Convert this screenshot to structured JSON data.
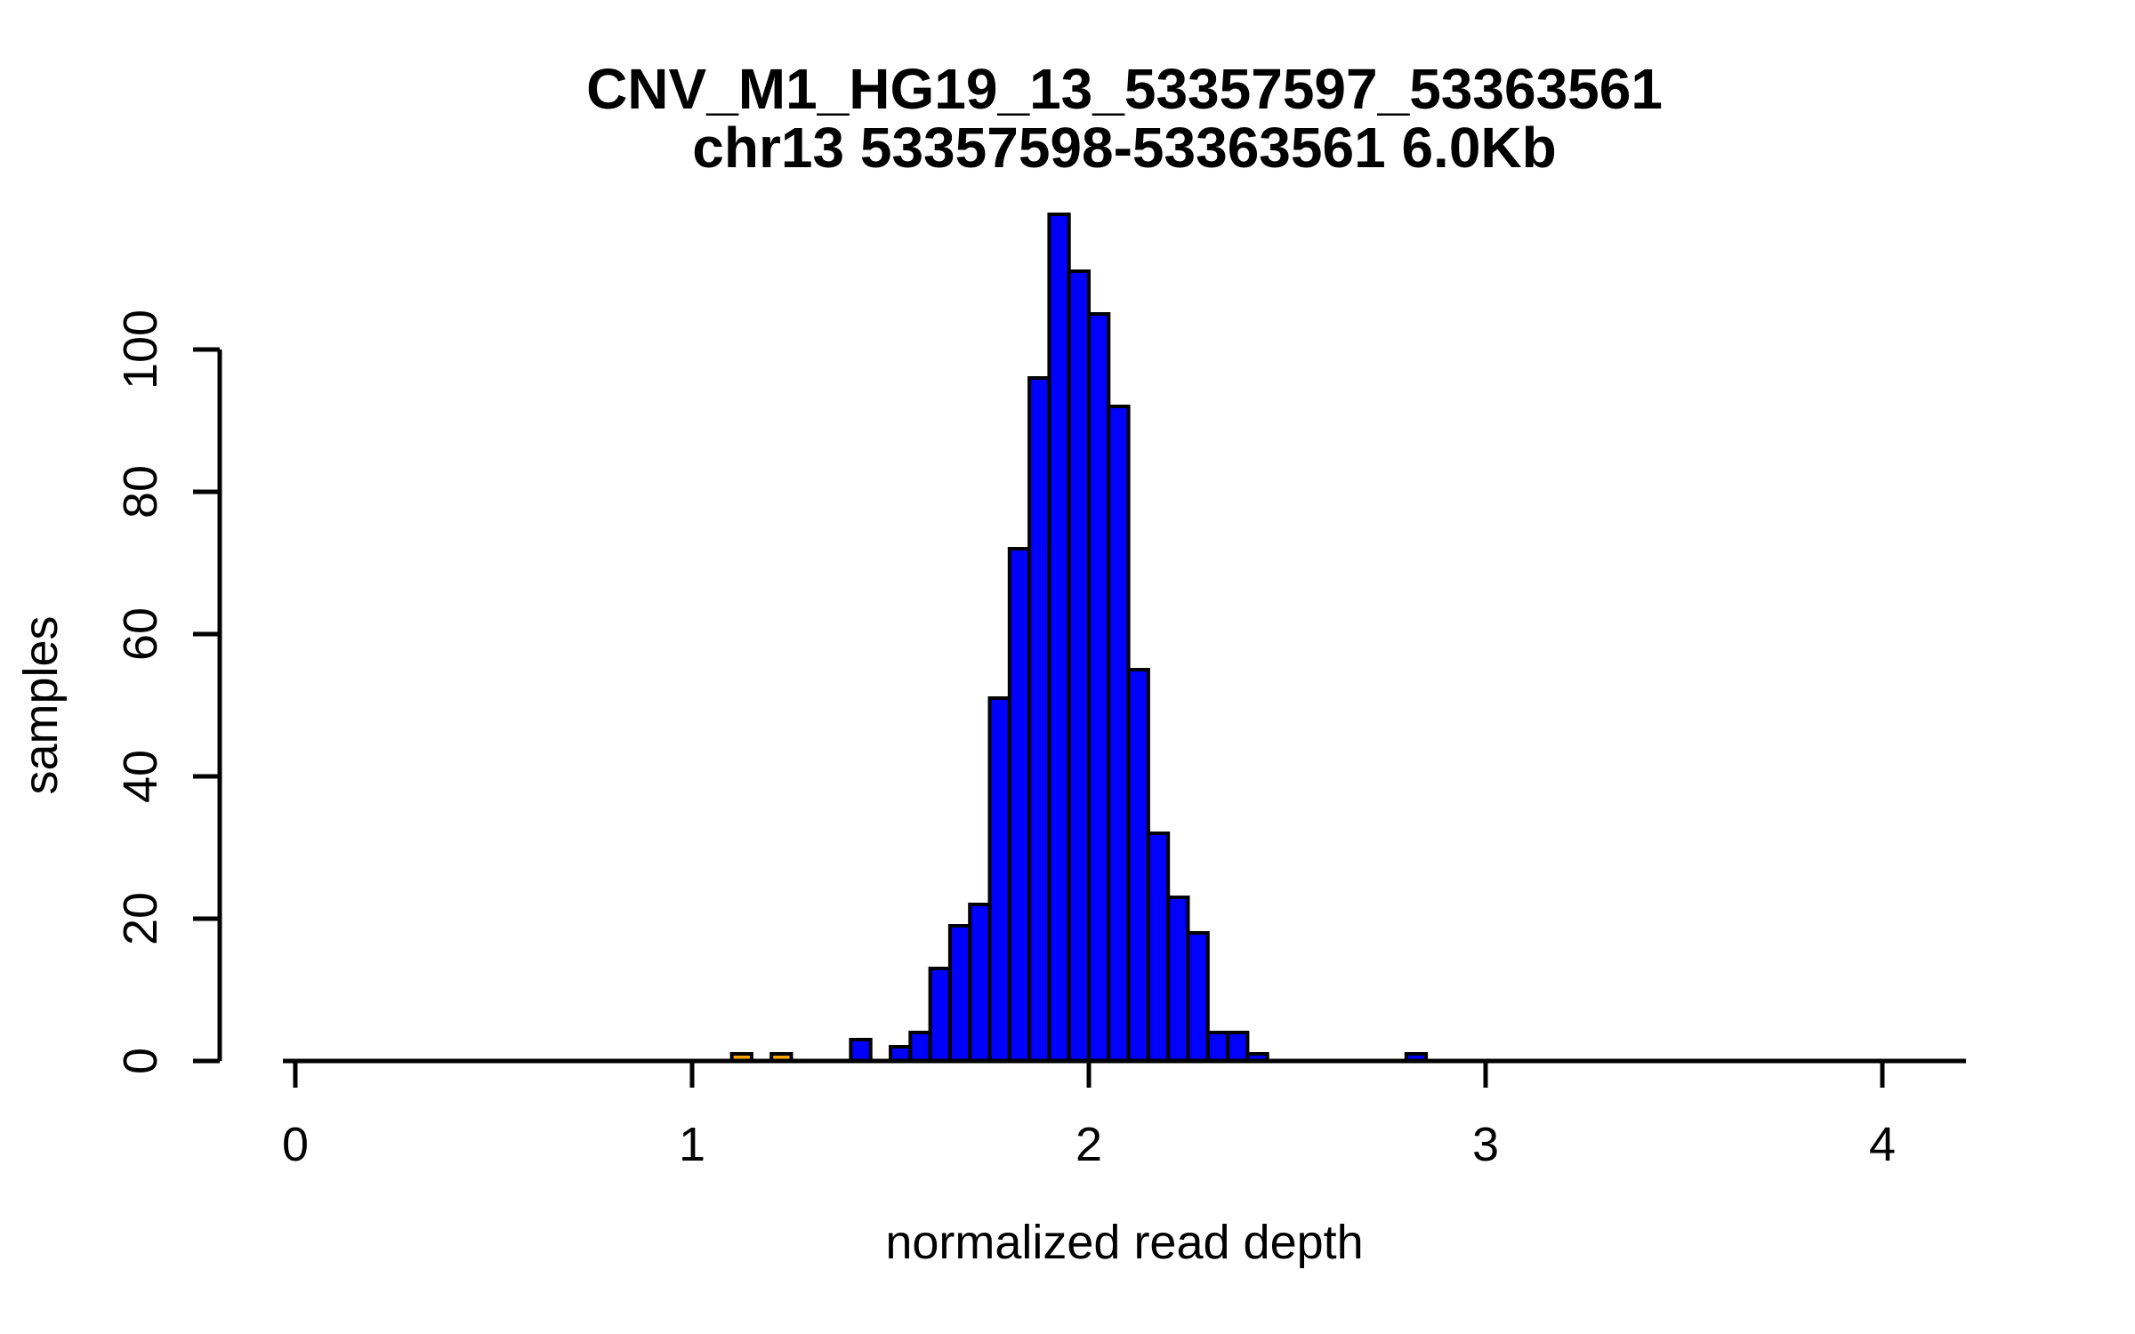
{
  "figure": {
    "title_line1": "CNV_M1_HG19_13_53357597_53363561",
    "title_line2": "chr13 53357598-53363561 6.0Kb"
  },
  "x_axis": {
    "label": "normalized read depth",
    "ticks": [
      0,
      1,
      2,
      3,
      4
    ]
  },
  "y_axis": {
    "label": "samples",
    "ticks": [
      0,
      20,
      40,
      60,
      80,
      100
    ]
  },
  "colors": {
    "bar_main": "#0000FF",
    "bar_outlier": "#FFA500",
    "axis": "#000000",
    "text": "#000000",
    "background": "#FFFFFF"
  },
  "chart_data": {
    "type": "bar",
    "subtype": "histogram",
    "title": "CNV_M1_HG19_13_53357597_53363561\nchr13 53357598-53363561 6.0Kb",
    "xlabel": "normalized read depth",
    "ylabel": "samples",
    "xlim": [
      -0.03,
      4.24
    ],
    "ylim": [
      0,
      119
    ],
    "grid": false,
    "legend": "none",
    "bin_width": 0.05,
    "default_bar_color": "#0000FF",
    "bins": [
      {
        "x0": 1.1,
        "x1": 1.15,
        "count": 1,
        "color": "#FFA500"
      },
      {
        "x0": 1.2,
        "x1": 1.25,
        "count": 1,
        "color": "#FFA500"
      },
      {
        "x0": 1.4,
        "x1": 1.45,
        "count": 3,
        "color": "#0000FF"
      },
      {
        "x0": 1.5,
        "x1": 1.55,
        "count": 2,
        "color": "#0000FF"
      },
      {
        "x0": 1.55,
        "x1": 1.6,
        "count": 4,
        "color": "#0000FF"
      },
      {
        "x0": 1.6,
        "x1": 1.65,
        "count": 13,
        "color": "#0000FF"
      },
      {
        "x0": 1.65,
        "x1": 1.7,
        "count": 19,
        "color": "#0000FF"
      },
      {
        "x0": 1.7,
        "x1": 1.75,
        "count": 22,
        "color": "#0000FF"
      },
      {
        "x0": 1.75,
        "x1": 1.8,
        "count": 51,
        "color": "#0000FF"
      },
      {
        "x0": 1.8,
        "x1": 1.85,
        "count": 72,
        "color": "#0000FF"
      },
      {
        "x0": 1.85,
        "x1": 1.9,
        "count": 96,
        "color": "#0000FF"
      },
      {
        "x0": 1.9,
        "x1": 1.95,
        "count": 119,
        "color": "#0000FF"
      },
      {
        "x0": 1.95,
        "x1": 2.0,
        "count": 111,
        "color": "#0000FF"
      },
      {
        "x0": 2.0,
        "x1": 2.05,
        "count": 105,
        "color": "#0000FF"
      },
      {
        "x0": 2.05,
        "x1": 2.1,
        "count": 92,
        "color": "#0000FF"
      },
      {
        "x0": 2.1,
        "x1": 2.15,
        "count": 55,
        "color": "#0000FF"
      },
      {
        "x0": 2.15,
        "x1": 2.2,
        "count": 32,
        "color": "#0000FF"
      },
      {
        "x0": 2.2,
        "x1": 2.25,
        "count": 23,
        "color": "#0000FF"
      },
      {
        "x0": 2.25,
        "x1": 2.3,
        "count": 18,
        "color": "#0000FF"
      },
      {
        "x0": 2.3,
        "x1": 2.35,
        "count": 4,
        "color": "#0000FF"
      },
      {
        "x0": 2.35,
        "x1": 2.4,
        "count": 4,
        "color": "#0000FF"
      },
      {
        "x0": 2.4,
        "x1": 2.45,
        "count": 1,
        "color": "#0000FF"
      },
      {
        "x0": 2.8,
        "x1": 2.85,
        "count": 1,
        "color": "#0000FF"
      }
    ]
  }
}
